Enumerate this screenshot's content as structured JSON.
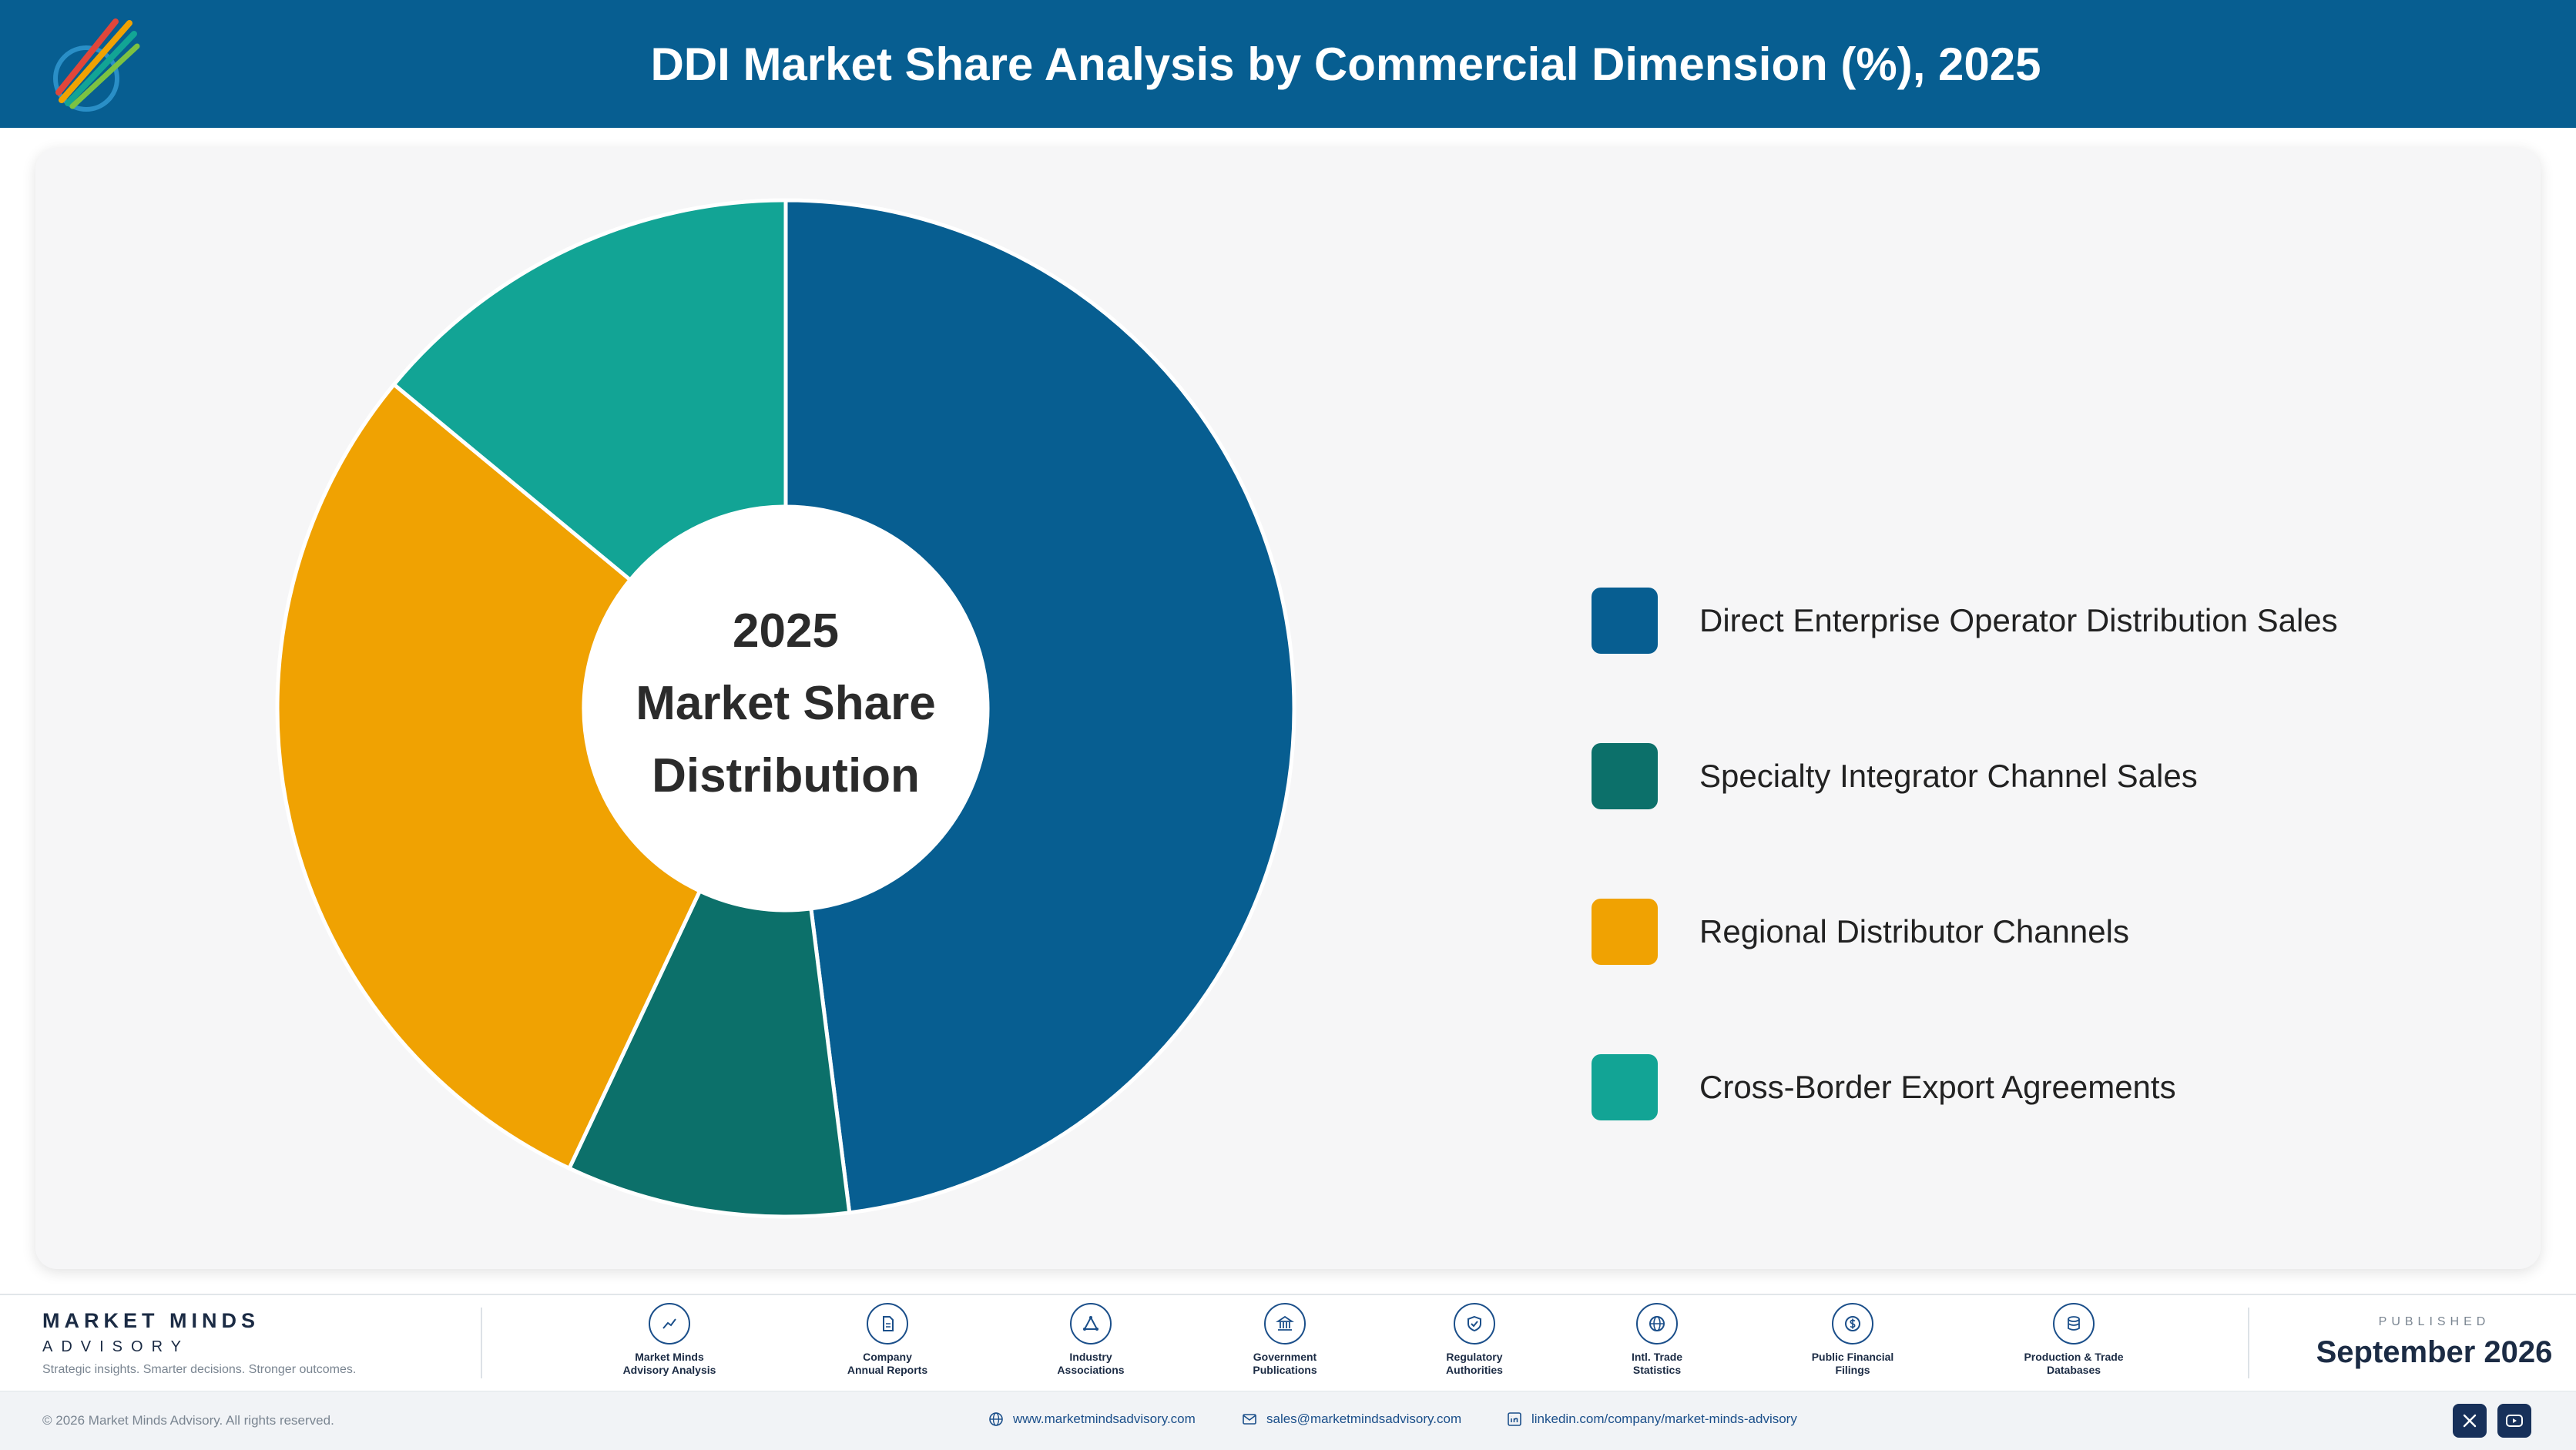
{
  "header": {
    "title": "DDI Market Share Analysis by Commercial Dimension (%), 2025",
    "background": "#075e91"
  },
  "chart_data": {
    "type": "pie",
    "variant": "donut",
    "title": "DDI Market Share Analysis by Commercial Dimension (%), 2025",
    "center_label": [
      "2025",
      "Market Share",
      "Distribution"
    ],
    "categories": [
      "Direct Enterprise Operator Distribution Sales",
      "Specialty Integrator Channel Sales",
      "Regional Distributor Channels",
      "Cross-Border Export Agreements"
    ],
    "values": [
      48,
      9,
      29,
      14
    ],
    "colors": [
      "#075e91",
      "#0c706a",
      "#f0a202",
      "#12a495"
    ],
    "legend_position": "right"
  },
  "footer": {
    "brand_name": "MARKET MINDS",
    "brand_sub": "ADVISORY",
    "tagline": "Strategic insights. Smarter decisions. Stronger outcomes.",
    "sources": [
      {
        "label": "Market Minds\nAdvisory Analysis",
        "icon": "trend-line-icon"
      },
      {
        "label": "Company\nAnnual Reports",
        "icon": "document-icon"
      },
      {
        "label": "Industry\nAssociations",
        "icon": "network-icon"
      },
      {
        "label": "Government\nPublications",
        "icon": "government-building-icon"
      },
      {
        "label": "Regulatory\nAuthorities",
        "icon": "shield-check-icon"
      },
      {
        "label": "Intl. Trade\nStatistics",
        "icon": "globe-icon"
      },
      {
        "label": "Public Financial\nFilings",
        "icon": "dollar-coin-icon"
      },
      {
        "label": "Production & Trade\nDatabases",
        "icon": "database-icon"
      }
    ],
    "published_label": "PUBLISHED",
    "published_date": "September 2026",
    "copyright": "© 2026 Market Minds Advisory. All rights reserved.",
    "website": "www.marketmindsadvisory.com",
    "email": "sales@marketmindsadvisory.com",
    "linkedin": "linkedin.com/company/market-minds-advisory",
    "social": [
      "x-icon",
      "youtube-icon"
    ]
  }
}
